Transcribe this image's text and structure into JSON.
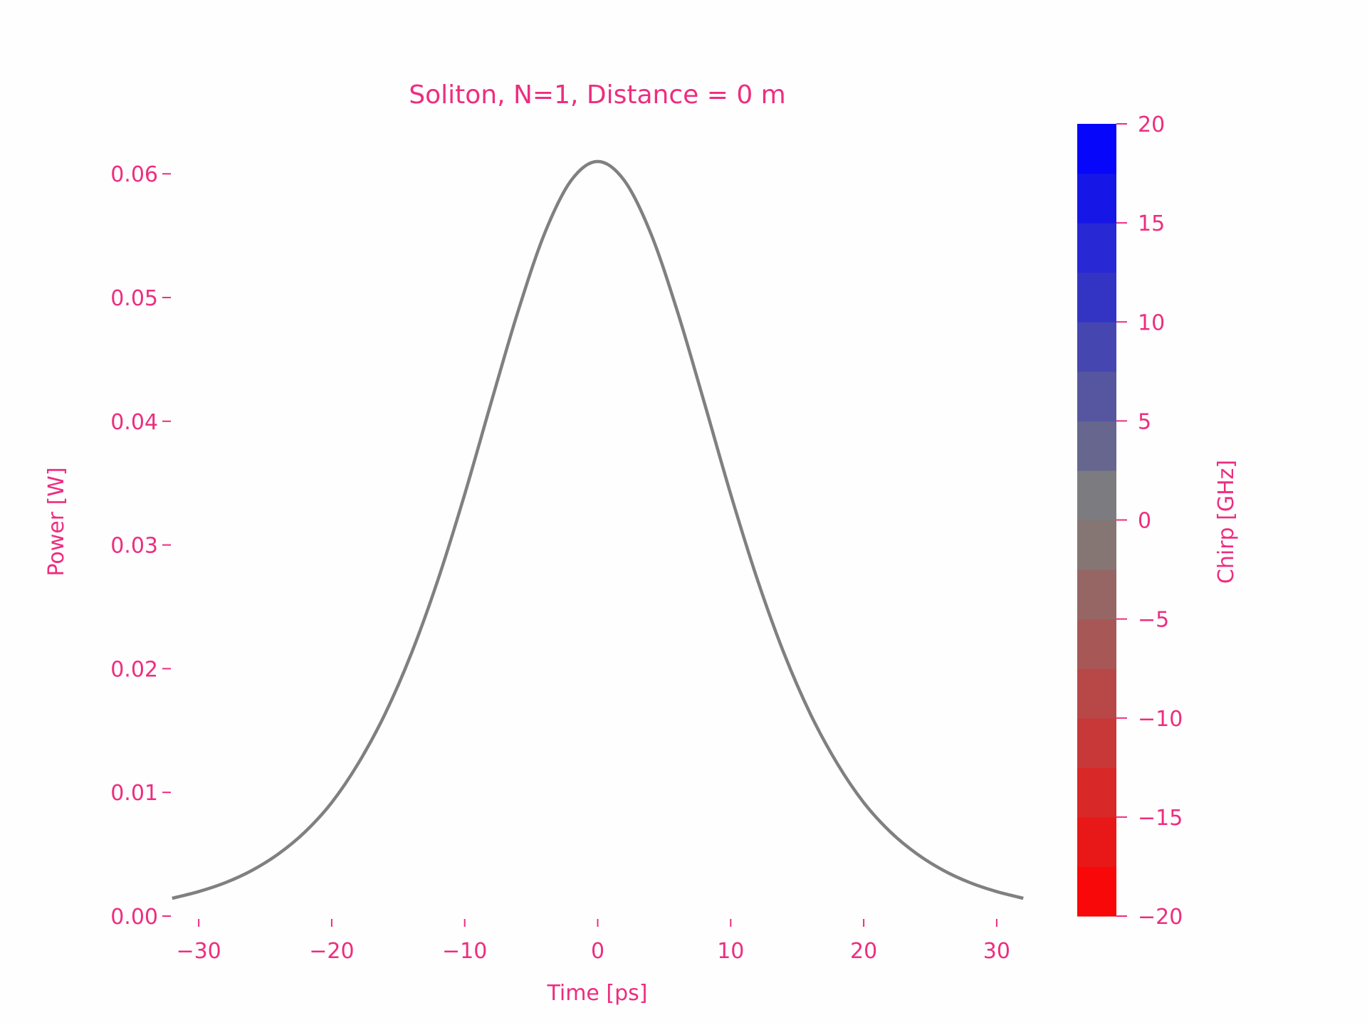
{
  "chart_data": [
    {
      "type": "line",
      "title": "Soliton, N=1, Distance = 0 m",
      "xlabel": "Time [ps]",
      "ylabel": "Power [W]",
      "xlim": [
        -32,
        32
      ],
      "ylim": [
        0,
        0.0615
      ],
      "xticks": [
        "−30",
        "−20",
        "−10",
        "0",
        "10",
        "20",
        "30"
      ],
      "xtick_values": [
        -30,
        -20,
        -10,
        0,
        10,
        20,
        30
      ],
      "yticks": [
        "0.00",
        "0.01",
        "0.02",
        "0.03",
        "0.04",
        "0.05",
        "0.06"
      ],
      "ytick_values": [
        0,
        0.01,
        0.02,
        0.03,
        0.04,
        0.05,
        0.06
      ],
      "grid": false,
      "series": [
        {
          "color": "#808080",
          "x": [
            -32,
            -30,
            -28,
            -26,
            -24,
            -22,
            -20,
            -18,
            -16,
            -14,
            -12,
            -10,
            -8,
            -6,
            -4,
            -2,
            0,
            2,
            4,
            6,
            8,
            10,
            12,
            14,
            16,
            18,
            20,
            22,
            24,
            26,
            28,
            30,
            32
          ],
          "y": [
            0.00144,
            0.00198,
            0.0027,
            0.00369,
            0.00503,
            0.00681,
            0.00918,
            0.01235,
            0.01632,
            0.02126,
            0.02722,
            0.0341,
            0.04156,
            0.04885,
            0.05516,
            0.05946,
            0.061,
            0.05946,
            0.05516,
            0.04885,
            0.04156,
            0.0341,
            0.02722,
            0.02126,
            0.01632,
            0.01235,
            0.00918,
            0.00681,
            0.00503,
            0.00369,
            0.0027,
            0.00198,
            0.00144
          ]
        }
      ]
    },
    {
      "type": "colorbar",
      "label": "Chirp [GHz]",
      "range": [
        -20,
        20
      ],
      "ticks": [
        "−20",
        "−15",
        "−10",
        "−5",
        "0",
        "5",
        "10",
        "15",
        "20"
      ],
      "tick_values": [
        -20,
        -15,
        -10,
        -5,
        0,
        5,
        10,
        15,
        20
      ],
      "colors_bottom_to_top": [
        "#f80808",
        "#e81818",
        "#d82828",
        "#c83838",
        "#b84848",
        "#a85757",
        "#966665",
        "#857673",
        "#7c7c80",
        "#66668f",
        "#5656a0",
        "#4646b0",
        "#3434c4",
        "#2828d4",
        "#1616e6",
        "#0606fa"
      ]
    }
  ],
  "text_color": "#ee2d7f"
}
